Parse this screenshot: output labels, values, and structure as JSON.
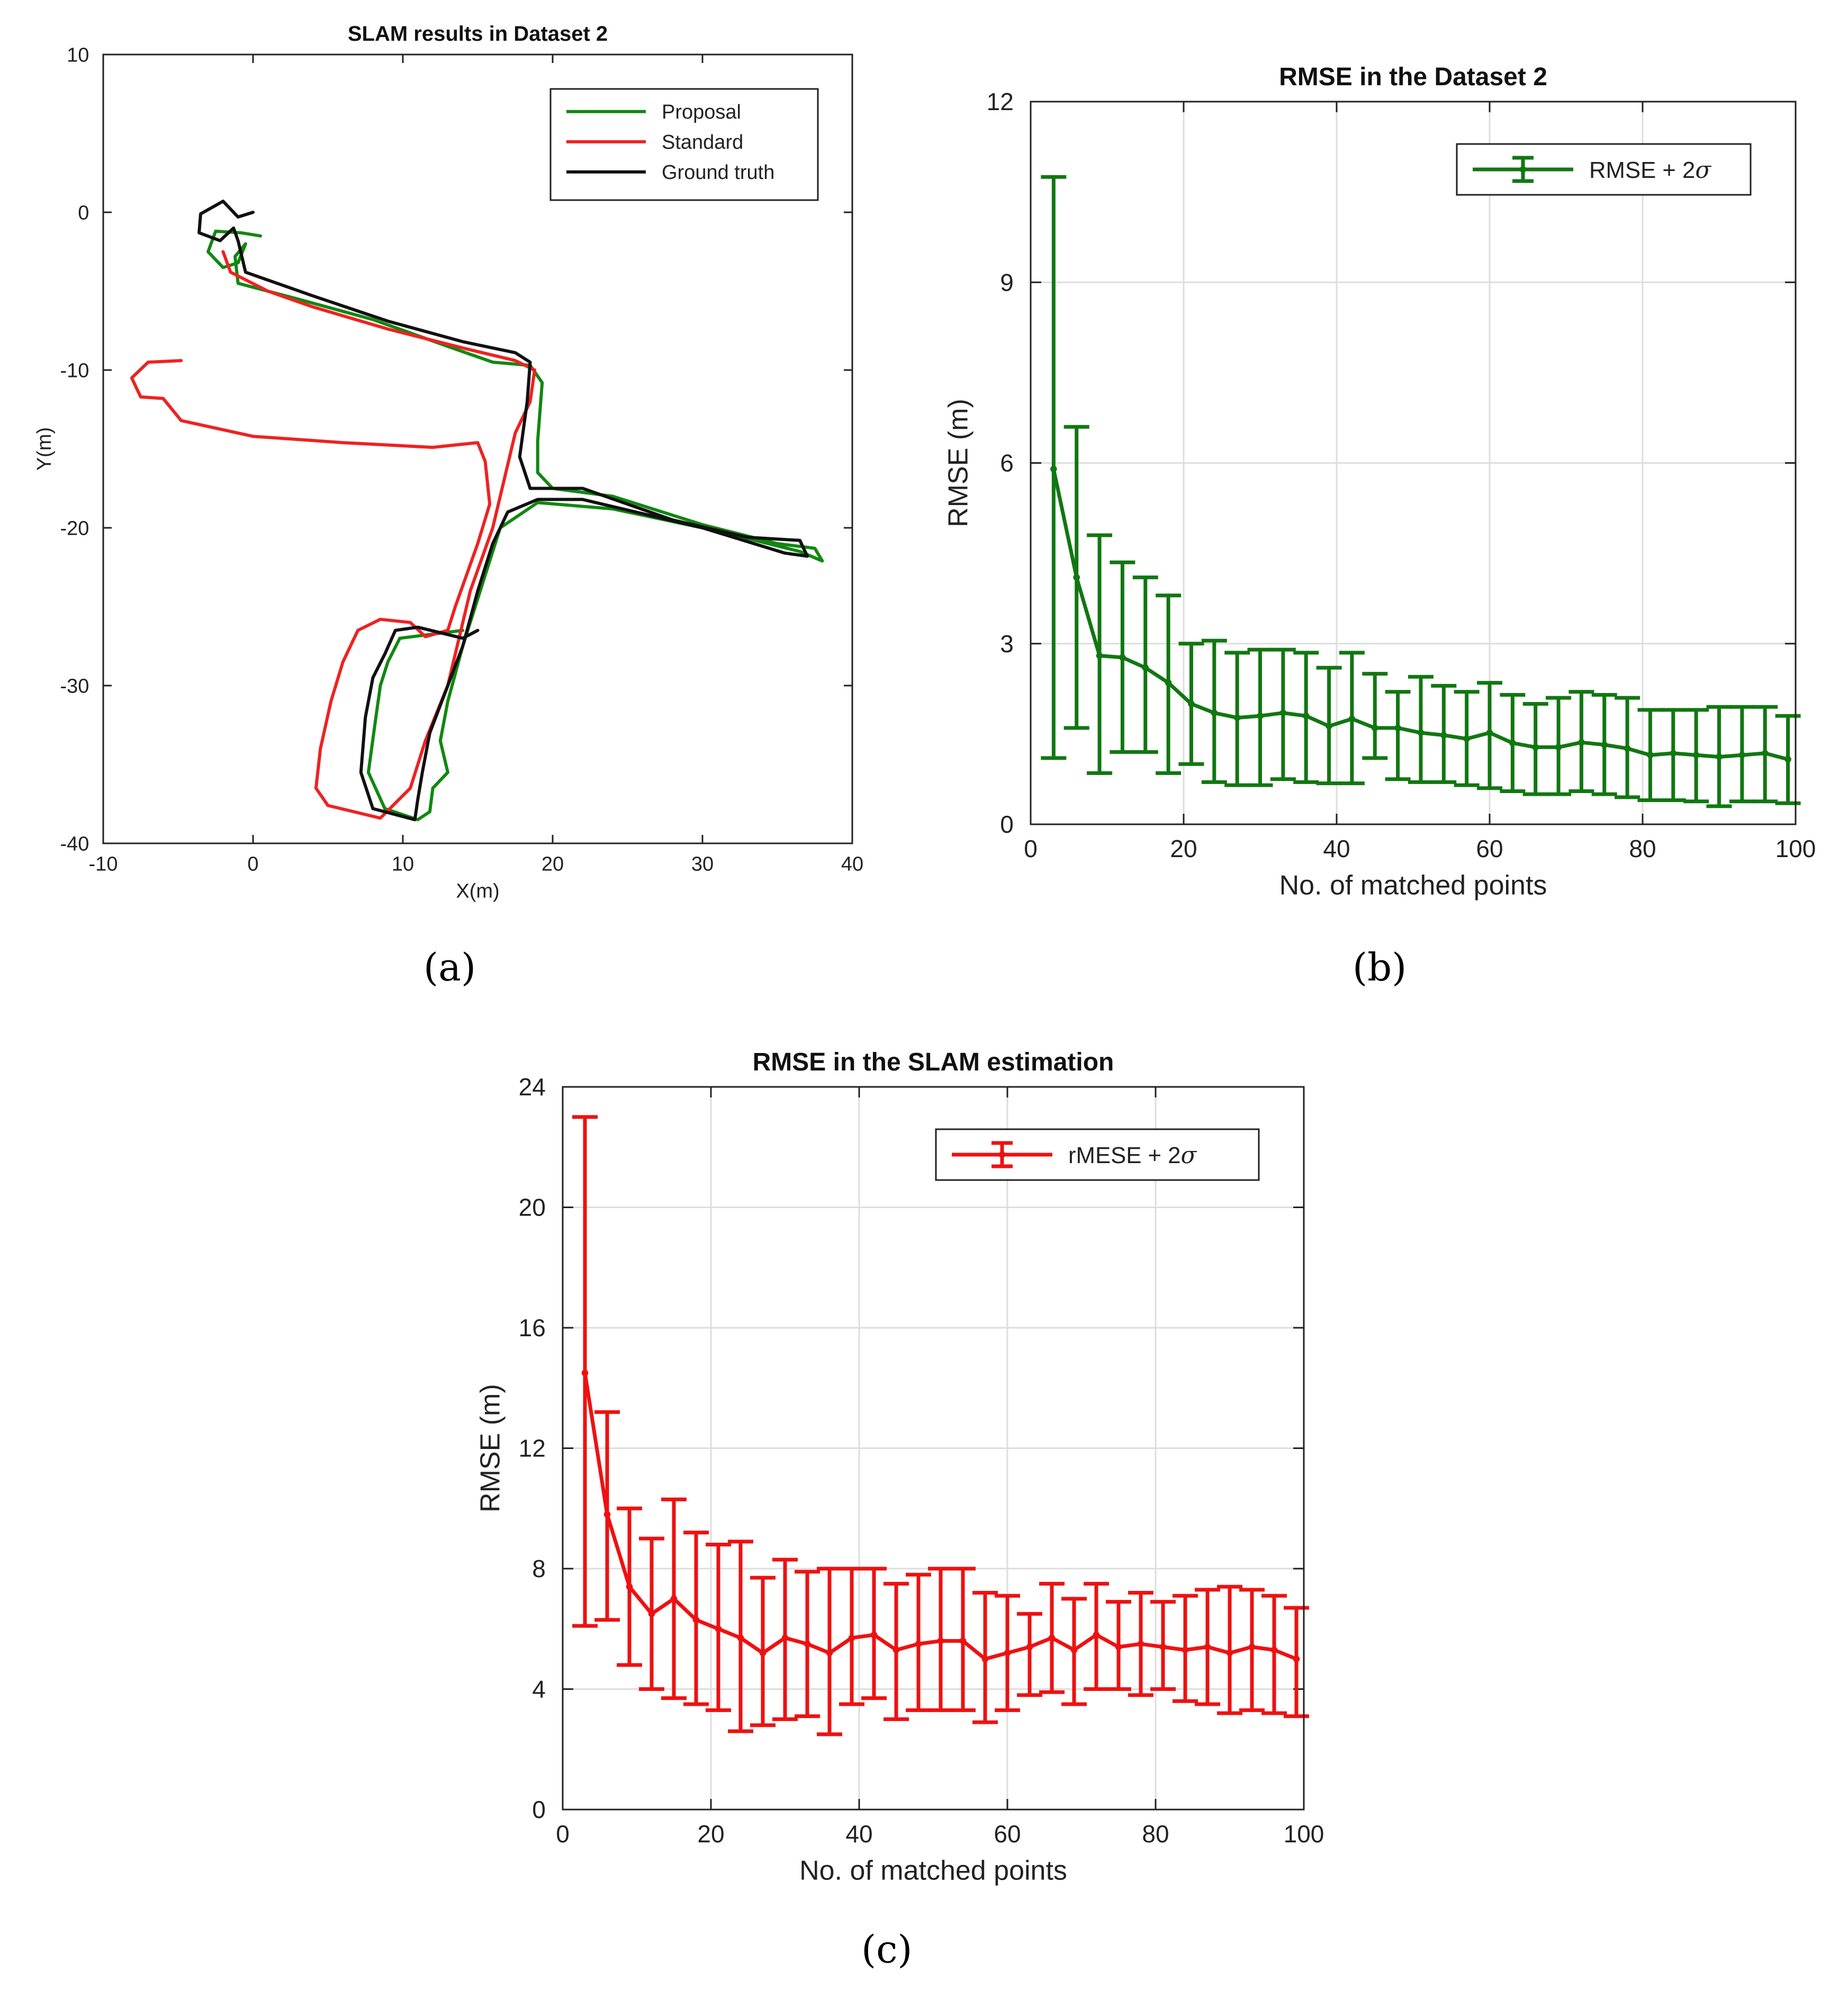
{
  "chart_data": [
    {
      "id": "a",
      "type": "line",
      "title": "SLAM results in Dataset 2",
      "xlabel": "X(m)",
      "ylabel": "Y(m)",
      "xlim": [
        -10,
        40
      ],
      "ylim": [
        -40,
        10
      ],
      "xticks": [
        -10,
        0,
        10,
        20,
        30,
        40
      ],
      "yticks": [
        -40,
        -30,
        -20,
        -10,
        0,
        10
      ],
      "xtick_labels": [
        "-10",
        "0",
        "10",
        "20",
        "30",
        "40"
      ],
      "ytick_labels": [
        "-40",
        "-30",
        "-20",
        "-10",
        "0",
        "10"
      ],
      "grid": false,
      "legend_position": "top-right",
      "series": [
        {
          "name": "Proposal",
          "color": "#118811",
          "points": [
            [
              0.5,
              -1.5
            ],
            [
              -0.8,
              -1.3
            ],
            [
              -2.5,
              -1.2
            ],
            [
              -3.0,
              -2.5
            ],
            [
              -2.0,
              -3.5
            ],
            [
              -1.0,
              -3.2
            ],
            [
              -0.5,
              -2.0
            ],
            [
              -1.2,
              -2.8
            ],
            [
              -1.0,
              -4.5
            ],
            [
              3,
              -5.5
            ],
            [
              8,
              -6.8
            ],
            [
              13,
              -8.5
            ],
            [
              16,
              -9.5
            ],
            [
              18.5,
              -9.7
            ],
            [
              19.3,
              -10.8
            ],
            [
              19.0,
              -14.5
            ],
            [
              19.0,
              -16.5
            ],
            [
              20,
              -17.5
            ],
            [
              24,
              -18.0
            ],
            [
              30,
              -19.8
            ],
            [
              35,
              -21.0
            ],
            [
              37.5,
              -21.3
            ],
            [
              38.0,
              -22.1
            ],
            [
              36.5,
              -21.5
            ],
            [
              31,
              -20.2
            ],
            [
              24,
              -18.8
            ],
            [
              19,
              -18.4
            ],
            [
              16.5,
              -20.0
            ],
            [
              15.5,
              -23
            ],
            [
              14,
              -27.5
            ],
            [
              13.0,
              -31
            ],
            [
              12.5,
              -33.5
            ],
            [
              13.0,
              -35.5
            ],
            [
              12.0,
              -36.5
            ],
            [
              11.8,
              -38.0
            ],
            [
              11.0,
              -38.5
            ],
            [
              8.8,
              -37.8
            ],
            [
              7.7,
              -35.5
            ],
            [
              8.2,
              -32
            ],
            [
              8.5,
              -30
            ],
            [
              9.0,
              -28.5
            ],
            [
              9.8,
              -27.0
            ],
            [
              14.0,
              -26.5
            ]
          ]
        },
        {
          "name": "Standard",
          "color": "#ee2222",
          "points": [
            [
              -4.8,
              -9.4
            ],
            [
              -7.0,
              -9.5
            ],
            [
              -8.1,
              -10.5
            ],
            [
              -7.5,
              -11.7
            ],
            [
              -6.0,
              -11.8
            ],
            [
              -4.8,
              -13.2
            ],
            [
              0,
              -14.2
            ],
            [
              6,
              -14.6
            ],
            [
              12,
              -14.9
            ],
            [
              15.0,
              -14.6
            ],
            [
              15.5,
              -15.8
            ],
            [
              15.8,
              -18.5
            ],
            [
              15.0,
              -21
            ],
            [
              13.5,
              -25
            ],
            [
              13.0,
              -26.5
            ],
            [
              11.5,
              -26.9
            ],
            [
              10.5,
              -26.0
            ],
            [
              8.5,
              -25.8
            ],
            [
              7.0,
              -26.5
            ],
            [
              6.0,
              -28.5
            ],
            [
              5.2,
              -31
            ],
            [
              4.5,
              -34
            ],
            [
              4.2,
              -36.5
            ],
            [
              5.0,
              -37.6
            ],
            [
              8.5,
              -38.4
            ],
            [
              10.5,
              -36.5
            ],
            [
              11.5,
              -33.5
            ],
            [
              13.0,
              -30
            ],
            [
              14.5,
              -24
            ],
            [
              16.0,
              -20.0
            ],
            [
              17.5,
              -14
            ],
            [
              18.5,
              -12
            ],
            [
              18.8,
              -10.0
            ],
            [
              17.5,
              -9.4
            ],
            [
              14,
              -8.6
            ],
            [
              9,
              -7.4
            ],
            [
              4,
              -6.0
            ],
            [
              1,
              -5.0
            ],
            [
              -1.5,
              -3.8
            ],
            [
              -2.0,
              -2.5
            ]
          ]
        },
        {
          "name": "Ground truth",
          "color": "#111111",
          "points": [
            [
              0,
              0
            ],
            [
              -1.0,
              -0.3
            ],
            [
              -2.0,
              0.7
            ],
            [
              -3.5,
              -0.1
            ],
            [
              -3.6,
              -1.3
            ],
            [
              -2.2,
              -1.8
            ],
            [
              -1.3,
              -1.0
            ],
            [
              -1.0,
              -1.8
            ],
            [
              -0.5,
              -3.8
            ],
            [
              4,
              -5.3
            ],
            [
              9,
              -6.9
            ],
            [
              14,
              -8.2
            ],
            [
              17.5,
              -8.9
            ],
            [
              18.5,
              -9.5
            ],
            [
              18.3,
              -12
            ],
            [
              17.8,
              -15.5
            ],
            [
              18.5,
              -17.5
            ],
            [
              22,
              -17.5
            ],
            [
              28,
              -19.5
            ],
            [
              33,
              -20.6
            ],
            [
              36.5,
              -20.8
            ],
            [
              37.0,
              -21.8
            ],
            [
              35.5,
              -21.6
            ],
            [
              30,
              -20.0
            ],
            [
              22,
              -18.2
            ],
            [
              19,
              -18.2
            ],
            [
              17.0,
              -19.0
            ],
            [
              16.0,
              -21
            ],
            [
              15.0,
              -24
            ],
            [
              14,
              -27.5
            ],
            [
              13.0,
              -30
            ],
            [
              11.8,
              -33
            ],
            [
              11.3,
              -35.5
            ],
            [
              11.0,
              -37.2
            ],
            [
              10.8,
              -38.5
            ],
            [
              8.0,
              -37.8
            ],
            [
              7.2,
              -35.5
            ],
            [
              7.5,
              -32
            ],
            [
              8.0,
              -29.5
            ],
            [
              8.8,
              -28.0
            ],
            [
              9.5,
              -26.5
            ],
            [
              11,
              -26.3
            ],
            [
              14.0,
              -27.0
            ],
            [
              15.0,
              -26.5
            ]
          ]
        }
      ]
    },
    {
      "id": "b",
      "type": "line",
      "title": "RMSE in the Dataset 2",
      "xlabel": "No. of matched points",
      "ylabel": "RMSE (m)",
      "xlim": [
        0,
        100
      ],
      "ylim": [
        0,
        12
      ],
      "xticks": [
        0,
        20,
        40,
        60,
        80,
        100
      ],
      "yticks": [
        0,
        3,
        6,
        9,
        12
      ],
      "xtick_labels": [
        "0",
        "20",
        "40",
        "60",
        "80",
        "100"
      ],
      "ytick_labels": [
        "0",
        "3",
        "6",
        "9",
        "12"
      ],
      "grid": true,
      "legend_position": "top-right",
      "series": [
        {
          "name": "RMSE + 2σ",
          "legend_text": "RMSE + 2",
          "legend_symbol": "σ",
          "color": "#117711",
          "x": [
            3,
            6,
            9,
            12,
            15,
            18,
            21,
            24,
            27,
            30,
            33,
            36,
            39,
            42,
            45,
            48,
            51,
            54,
            57,
            60,
            63,
            66,
            69,
            72,
            75,
            78,
            81,
            84,
            87,
            90,
            93,
            96,
            99
          ],
          "y": [
            5.9,
            4.1,
            2.8,
            2.77,
            2.6,
            2.35,
            2.0,
            1.85,
            1.77,
            1.8,
            1.85,
            1.8,
            1.63,
            1.75,
            1.6,
            1.6,
            1.52,
            1.48,
            1.42,
            1.52,
            1.35,
            1.28,
            1.28,
            1.36,
            1.32,
            1.26,
            1.15,
            1.18,
            1.15,
            1.12,
            1.15,
            1.18,
            1.08
          ],
          "err_low": [
            1.1,
            1.6,
            0.85,
            1.2,
            1.2,
            0.85,
            1.0,
            0.7,
            0.65,
            0.65,
            0.75,
            0.7,
            0.68,
            0.68,
            1.1,
            0.75,
            0.7,
            0.7,
            0.65,
            0.6,
            0.55,
            0.5,
            0.5,
            0.55,
            0.5,
            0.45,
            0.4,
            0.4,
            0.38,
            0.3,
            0.38,
            0.38,
            0.35
          ],
          "err_high": [
            10.75,
            6.6,
            4.8,
            4.35,
            4.1,
            3.8,
            3.0,
            3.05,
            2.85,
            2.9,
            2.9,
            2.85,
            2.6,
            2.85,
            2.5,
            2.2,
            2.45,
            2.3,
            2.2,
            2.35,
            2.15,
            2.0,
            2.1,
            2.2,
            2.15,
            2.1,
            1.9,
            1.9,
            1.9,
            1.95,
            1.95,
            1.95,
            1.8
          ]
        }
      ]
    },
    {
      "id": "c",
      "type": "line",
      "title": "RMSE in the SLAM estimation",
      "xlabel": "No. of matched points",
      "ylabel": "RMSE (m)",
      "xlim": [
        0,
        100
      ],
      "ylim": [
        0,
        24
      ],
      "xticks": [
        0,
        20,
        40,
        60,
        80,
        100
      ],
      "yticks": [
        0,
        4,
        8,
        12,
        16,
        20,
        24
      ],
      "xtick_labels": [
        "0",
        "20",
        "40",
        "60",
        "80",
        "100"
      ],
      "ytick_labels": [
        "0",
        "4",
        "8",
        "12",
        "16",
        "20",
        "24"
      ],
      "grid": true,
      "legend_position": "top-right",
      "series": [
        {
          "name": "rMESE + 2σ",
          "legend_text": "rMESE + 2",
          "legend_symbol": "σ",
          "color": "#ee1111",
          "x": [
            3,
            6,
            9,
            12,
            15,
            18,
            21,
            24,
            27,
            30,
            33,
            36,
            39,
            42,
            45,
            48,
            51,
            54,
            57,
            60,
            63,
            66,
            69,
            72,
            75,
            78,
            81,
            84,
            87,
            90,
            93,
            96,
            99
          ],
          "y": [
            14.5,
            9.8,
            7.4,
            6.5,
            7.0,
            6.3,
            6.0,
            5.7,
            5.2,
            5.7,
            5.5,
            5.2,
            5.7,
            5.8,
            5.3,
            5.5,
            5.6,
            5.6,
            5.0,
            5.2,
            5.4,
            5.7,
            5.3,
            5.8,
            5.4,
            5.5,
            5.4,
            5.3,
            5.4,
            5.2,
            5.4,
            5.3,
            5.0
          ],
          "err_low": [
            6.1,
            6.3,
            4.8,
            4.0,
            3.7,
            3.5,
            3.3,
            2.6,
            2.8,
            3.0,
            3.1,
            2.5,
            3.5,
            3.7,
            3.0,
            3.3,
            3.3,
            3.3,
            2.9,
            3.3,
            3.8,
            3.9,
            3.5,
            4.0,
            4.0,
            3.8,
            4.0,
            3.6,
            3.5,
            3.2,
            3.3,
            3.2,
            3.1
          ],
          "err_high": [
            23.0,
            13.2,
            10.0,
            9.0,
            10.3,
            9.2,
            8.8,
            8.9,
            7.7,
            8.3,
            7.9,
            8.0,
            8.0,
            8.0,
            7.5,
            7.8,
            8.0,
            8.0,
            7.2,
            7.1,
            6.5,
            7.5,
            7.0,
            7.5,
            6.9,
            7.2,
            6.9,
            7.1,
            7.3,
            7.4,
            7.3,
            7.1,
            6.7
          ]
        }
      ]
    }
  ],
  "captions": {
    "a": "(a)",
    "b": "(b)",
    "c": "(c)"
  }
}
